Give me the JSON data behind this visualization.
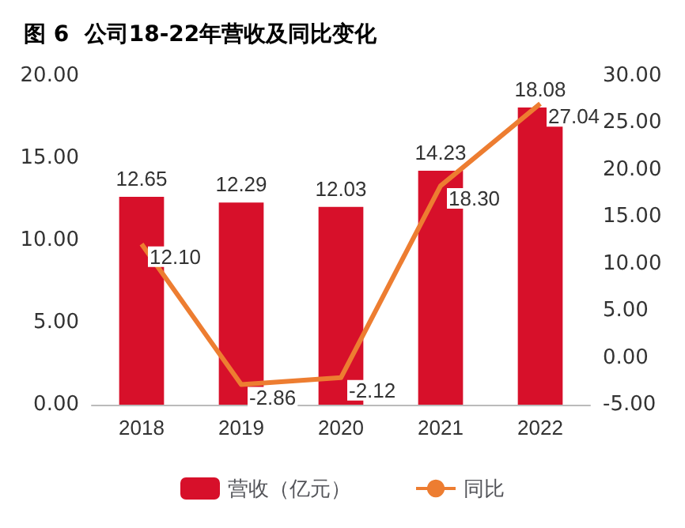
{
  "chart_data": {
    "type": "bar",
    "title": "图 6  公司18-22年营收及同比变化",
    "categories": [
      "2018",
      "2019",
      "2020",
      "2021",
      "2022"
    ],
    "series": [
      {
        "name": "营收（亿元）",
        "color": "#d7102a",
        "values": [
          12.65,
          12.29,
          12.03,
          14.23,
          18.08
        ],
        "value_labels": [
          "12.65",
          "12.29",
          "12.03",
          "14.23",
          "18.08"
        ]
      },
      {
        "name": "同比",
        "type": "line",
        "axis": "y2",
        "color": "#ed7d31",
        "values": [
          12.1,
          -2.86,
          -2.12,
          18.3,
          27.04
        ],
        "value_labels": [
          "12.10",
          "-2.86",
          "-2.12",
          "18.30",
          "27.04"
        ]
      }
    ],
    "ylim": [
      0,
      20
    ],
    "yticks": [
      {
        "value": 0,
        "label": "0.00"
      },
      {
        "value": 5,
        "label": "5.00"
      },
      {
        "value": 10,
        "label": "10.00"
      },
      {
        "value": 15,
        "label": "15.00"
      },
      {
        "value": 20,
        "label": "20.00"
      }
    ],
    "y2lim": [
      -5,
      30
    ],
    "y2ticks": [
      {
        "value": -5,
        "label": "-5.00"
      },
      {
        "value": 0,
        "label": "0.00"
      },
      {
        "value": 5,
        "label": "5.00"
      },
      {
        "value": 10,
        "label": "10.00"
      },
      {
        "value": 15,
        "label": "15.00"
      },
      {
        "value": 20,
        "label": "20.00"
      },
      {
        "value": 25,
        "label": "25.00"
      },
      {
        "value": 30,
        "label": "30.00"
      }
    ],
    "legend": "bottom",
    "grid": false,
    "marker": "none",
    "line_style": "solid"
  }
}
